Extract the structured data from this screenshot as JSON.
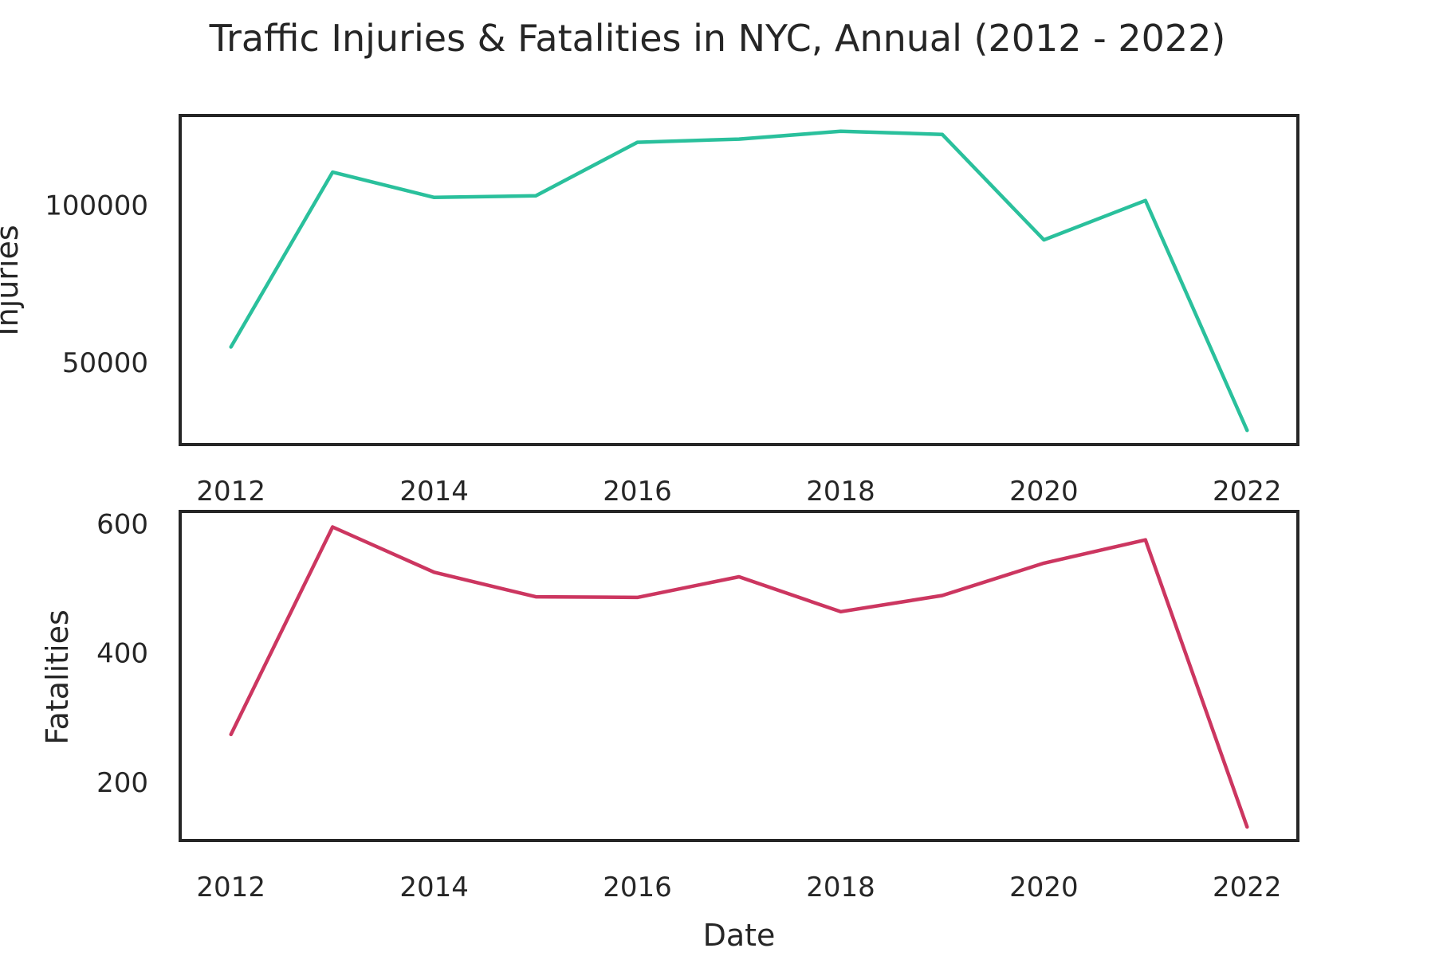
{
  "chart_data": {
    "title": "Traffic Injuries & Fatalities in NYC, Annual (2012 - 2022)",
    "subplots": [
      {
        "type": "line",
        "xlabel": "",
        "ylabel": "Injuries",
        "x": [
          2012,
          2013,
          2014,
          2015,
          2016,
          2017,
          2018,
          2019,
          2020,
          2021,
          2022
        ],
        "values": [
          55000,
          110500,
          102500,
          103000,
          120000,
          121000,
          123500,
          122500,
          89000,
          101500,
          28500
        ],
        "xlim": [
          2011.5,
          2022.5
        ],
        "ylim": [
          24000,
          128500
        ],
        "xticks": [
          2012,
          2014,
          2016,
          2018,
          2020,
          2022
        ],
        "yticks": [
          50000,
          100000
        ],
        "color": "#2ac09c",
        "grid": false
      },
      {
        "type": "line",
        "xlabel": "Date",
        "ylabel": "Fatalities",
        "x": [
          2012,
          2013,
          2014,
          2015,
          2016,
          2017,
          2018,
          2019,
          2020,
          2021,
          2022
        ],
        "values": [
          274,
          595,
          525,
          487,
          486,
          518,
          464,
          489,
          539,
          575,
          131
        ],
        "xlim": [
          2011.5,
          2022.5
        ],
        "ylim": [
          110,
          619
        ],
        "xticks": [
          2012,
          2014,
          2016,
          2018,
          2020,
          2022
        ],
        "yticks": [
          200,
          400,
          600
        ],
        "color": "#cc3660",
        "grid": false
      }
    ]
  }
}
